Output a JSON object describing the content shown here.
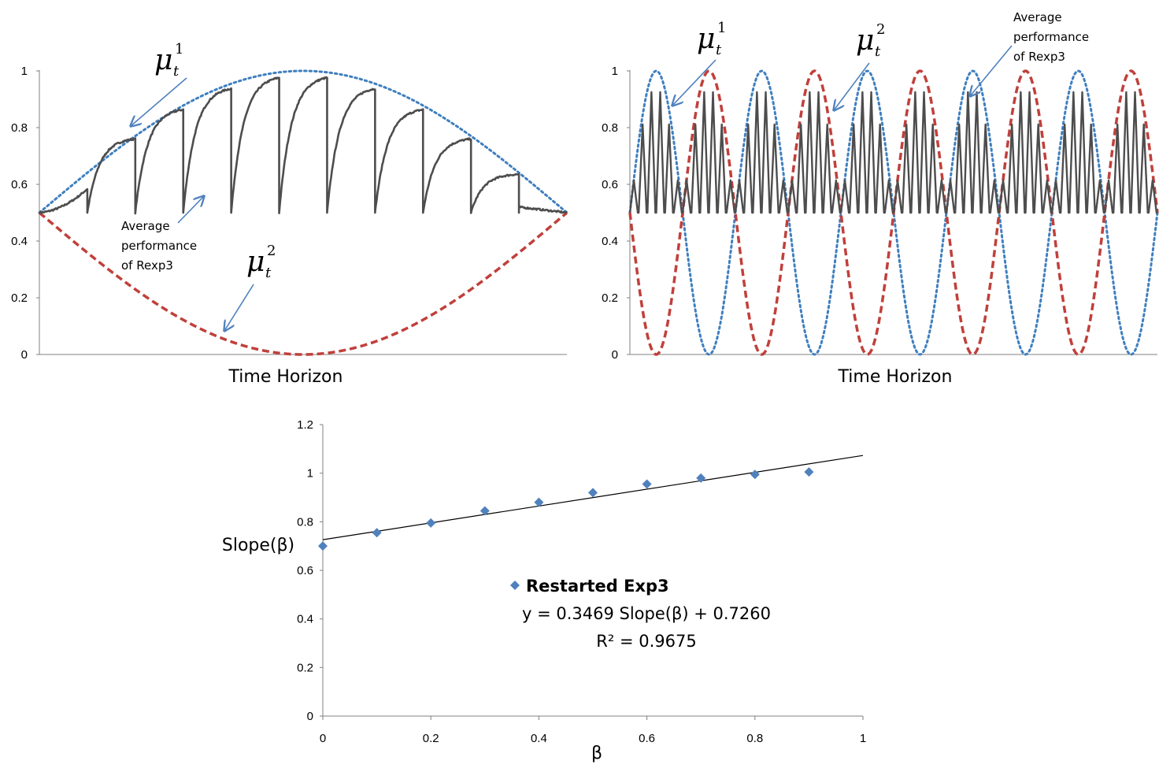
{
  "colors": {
    "mu1": "#3f7fbf",
    "mu2": "#c0403b",
    "rexp3": "#4d4d4d",
    "arrow": "#4f81bd",
    "scatter": "#4f81bd",
    "trend": "#000000",
    "axis": "#808080"
  },
  "chart_data": [
    {
      "type": "line",
      "xlabel": "Time Horizon",
      "ylim": [
        0,
        1
      ],
      "yticks": [
        "0",
        "0.2",
        "0.4",
        "0.6",
        "0.8",
        "1"
      ],
      "grid": false,
      "series": [
        {
          "style": "dotted",
          "function": "0.5 + 0.5*sin(pi*t)",
          "t_range": [
            0,
            1
          ]
        },
        {
          "style": "dashed",
          "function": "0.5 - 0.5*sin(pi*t)",
          "t_range": [
            0,
            1
          ]
        },
        {
          "style": "solid",
          "restart_segments": 11
        }
      ],
      "annotations": [
        {
          "symbol": "μ",
          "sub": "t",
          "sup": "1"
        },
        {
          "symbol": "μ",
          "sub": "t",
          "sup": "2"
        },
        {
          "lines": [
            "Average",
            "performance",
            "of Rexp3"
          ]
        }
      ]
    },
    {
      "type": "line",
      "xlabel": "Time Horizon",
      "ylim": [
        0,
        1
      ],
      "yticks": [
        "0",
        "0.2",
        "0.4",
        "0.6",
        "0.8",
        "1"
      ],
      "grid": false,
      "series": [
        {
          "style": "dotted",
          "function": "0.5 + 0.5*sin(2*pi*5*t)",
          "t_range": [
            0,
            1
          ]
        },
        {
          "style": "dashed",
          "function": "0.5 - 0.5*sin(2*pi*5*t)",
          "t_range": [
            0,
            1
          ]
        },
        {
          "style": "solid"
        }
      ],
      "annotations": [
        {
          "symbol": "μ",
          "sub": "t",
          "sup": "1"
        },
        {
          "symbol": "μ",
          "sub": "t",
          "sup": "2"
        },
        {
          "lines": [
            "Average",
            "performance",
            "of Rexp3"
          ]
        }
      ]
    },
    {
      "type": "scatter",
      "xlabel": "β",
      "ylabel": "Slope(β)",
      "xlim": [
        0,
        1
      ],
      "ylim": [
        0,
        1.2
      ],
      "xticks": [
        "0",
        "0.2",
        "0.4",
        "0.6",
        "0.8",
        "1"
      ],
      "yticks": [
        "0",
        "0.2",
        "0.4",
        "0.6",
        "0.8",
        "1",
        "1.2"
      ],
      "grid": false,
      "series": [
        {
          "name": "Restarted Exp3",
          "marker": "diamond",
          "x": [
            0,
            0.1,
            0.2,
            0.3,
            0.4,
            0.5,
            0.6,
            0.7,
            0.8,
            0.9
          ],
          "y": [
            0.7,
            0.755,
            0.795,
            0.845,
            0.88,
            0.92,
            0.955,
            0.98,
            0.995,
            1.005
          ]
        }
      ],
      "trendline": {
        "slope": 0.3469,
        "intercept": 0.726,
        "x_range": [
          0,
          1
        ]
      },
      "legend": {
        "label": "Restarted Exp3",
        "equation": "y = 0.3469 Slope(β) + 0.7260",
        "r2": "R² = 0.9675"
      }
    }
  ]
}
